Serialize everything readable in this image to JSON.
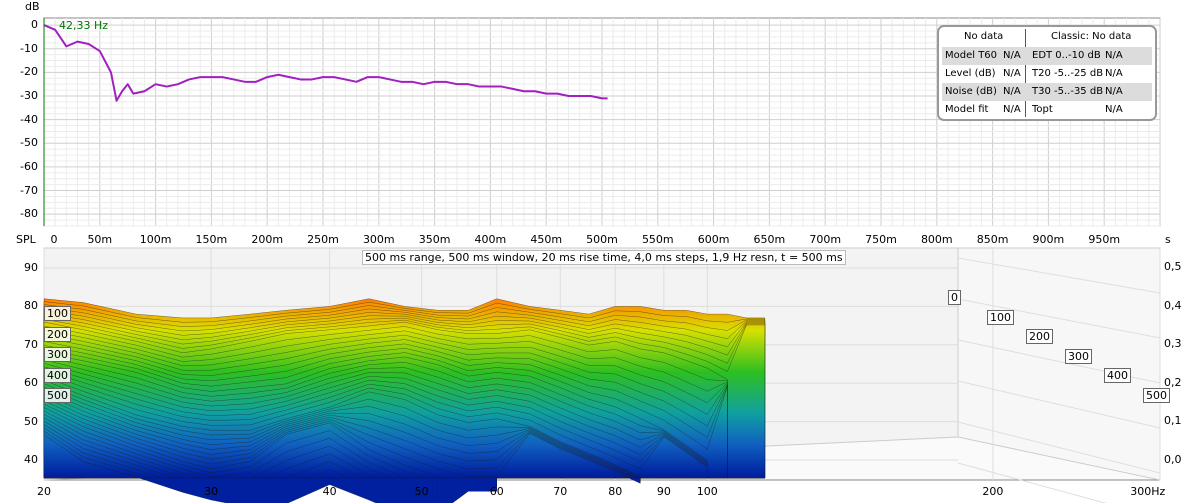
{
  "top_chart": {
    "ylabel": "dB",
    "marker_label": "42,33 Hz",
    "yticks": [
      "0",
      "-10",
      "-20",
      "-30",
      "-40",
      "-50",
      "-60",
      "-70",
      "-80"
    ],
    "xlabel_left": "SPL",
    "xlabel_right": "s",
    "xticks": [
      "0",
      "50m",
      "100m",
      "150m",
      "200m",
      "250m",
      "300m",
      "350m",
      "400m",
      "450m",
      "500m",
      "550m",
      "600m",
      "650m",
      "700m",
      "750m",
      "800m",
      "850m",
      "900m",
      "950m"
    ]
  },
  "t60_panel": {
    "left_header": "No data",
    "right_header": "Classic: No data",
    "rows": [
      {
        "label": "Model T60",
        "value": "N/A",
        "metric": "EDT  0..-10 dB",
        "metric_value": "N/A"
      },
      {
        "label": "Level (dB)",
        "value": "N/A",
        "metric": "T20 -5..-25 dB",
        "metric_value": "N/A"
      },
      {
        "label": "Noise (dB)",
        "value": "N/A",
        "metric": "T30 -5..-35 dB",
        "metric_value": "N/A"
      },
      {
        "label": "Model fit",
        "value": "N/A",
        "metric": "Topt",
        "metric_value": "N/A"
      }
    ]
  },
  "waterfall": {
    "title": "500 ms range, 500 ms window, 20 ms rise time, 4,0 ms steps,  1,9 Hz resn, t = 500 ms",
    "spl_ticks": [
      "90",
      "80",
      "70",
      "60",
      "50",
      "40"
    ],
    "right_ticks": [
      "0,5",
      "0,4",
      "0,3",
      "0,2",
      "0,1",
      "0,0"
    ],
    "freq_ticks": [
      "20",
      "30",
      "40",
      "50",
      "60",
      "70",
      "80",
      "90",
      "100",
      "200",
      "300Hz"
    ],
    "depth_labels_left": [
      "100",
      "200",
      "300",
      "400",
      "500"
    ],
    "depth_labels_right": [
      "0",
      "100",
      "200",
      "300",
      "400",
      "500"
    ]
  },
  "colors": {
    "decay_line": "#a020c0",
    "marker": "#007700",
    "grid": "#d0d0d0"
  },
  "chart_data": [
    {
      "type": "line",
      "title": "",
      "xlabel": "",
      "ylabel": "dB",
      "xlim": [
        0,
        1000
      ],
      "ylim": [
        -85,
        3
      ],
      "grid": true,
      "x": [
        0,
        10,
        20,
        30,
        40,
        50,
        60,
        65,
        70,
        75,
        80,
        90,
        100,
        110,
        120,
        130,
        140,
        150,
        160,
        170,
        180,
        190,
        200,
        210,
        220,
        230,
        240,
        250,
        260,
        270,
        280,
        290,
        300,
        310,
        320,
        330,
        340,
        350,
        360,
        370,
        380,
        390,
        400,
        410,
        420,
        430,
        440,
        450,
        460,
        470,
        480,
        490,
        500,
        505
      ],
      "series": [
        {
          "values": [
            0,
            -2,
            -9,
            -7,
            -8,
            -11,
            -20,
            -32,
            -28,
            -25,
            -29,
            -28,
            -25,
            -26,
            -25,
            -23,
            -22,
            -22,
            -22,
            -23,
            -24,
            -24,
            -22,
            -21,
            -22,
            -23,
            -23,
            -22,
            -22,
            -23,
            -24,
            -22,
            -22,
            -23,
            -24,
            -24,
            -25,
            -24,
            -24,
            -25,
            -25,
            -26,
            -26,
            -26,
            -27,
            -28,
            -28,
            -29,
            -29,
            -30,
            -30,
            -30,
            -31,
            -31
          ]
        }
      ]
    },
    {
      "type": "area",
      "title": "500 ms range, 500 ms window, 20 ms rise time, 4,0 ms steps,  1,9 Hz resn, t = 500 ms",
      "xlabel": "",
      "ylabel": "SPL",
      "xscale": "log",
      "xlim": [
        20,
        300
      ],
      "ylim": [
        35,
        92
      ],
      "zlim": [
        0,
        0.5
      ],
      "grid": true,
      "x": [
        20,
        22,
        25,
        28,
        30,
        33,
        36,
        40,
        44,
        48,
        52,
        56,
        60,
        65,
        70,
        75,
        80,
        85,
        90,
        95,
        100,
        105,
        110,
        115,
        120,
        125
      ],
      "slices": [
        {
          "t": 0.0,
          "values": [
            82,
            81,
            78,
            77,
            77,
            78,
            79,
            80,
            82,
            80,
            79,
            79,
            82,
            80,
            79,
            78,
            80,
            80,
            79,
            79,
            78,
            78,
            77,
            77,
            0,
            0
          ]
        },
        {
          "t": 0.1,
          "values": [
            78,
            76,
            73,
            70,
            71,
            73,
            75,
            76,
            77,
            78,
            76,
            75,
            75,
            76,
            74,
            72,
            73,
            71,
            70,
            68,
            66,
            63,
            0,
            0,
            0,
            0
          ]
        },
        {
          "t": 0.2,
          "values": [
            72,
            70,
            67,
            63,
            62,
            63,
            64,
            68,
            70,
            71,
            69,
            66,
            67,
            66,
            63,
            60,
            58,
            55,
            52,
            48,
            44,
            0,
            0,
            0,
            0,
            0
          ]
        },
        {
          "t": 0.3,
          "values": [
            67,
            63,
            58,
            55,
            54,
            54,
            57,
            60,
            64,
            62,
            58,
            56,
            57,
            55,
            51,
            48,
            45,
            42,
            0,
            0,
            0,
            0,
            0,
            0,
            0,
            0
          ]
        },
        {
          "t": 0.4,
          "values": [
            62,
            57,
            52,
            48,
            46,
            48,
            55,
            58,
            51,
            47,
            44,
            42,
            42,
            0,
            0,
            0,
            0,
            0,
            0,
            0,
            0,
            0,
            0,
            0,
            0,
            0
          ]
        },
        {
          "t": 0.5,
          "values": [
            57,
            50,
            46,
            42,
            40,
            38,
            39,
            44,
            40,
            36,
            35,
            0,
            0,
            0,
            0,
            0,
            0,
            0,
            0,
            0,
            0,
            0,
            0,
            0,
            0,
            0
          ]
        }
      ]
    }
  ]
}
